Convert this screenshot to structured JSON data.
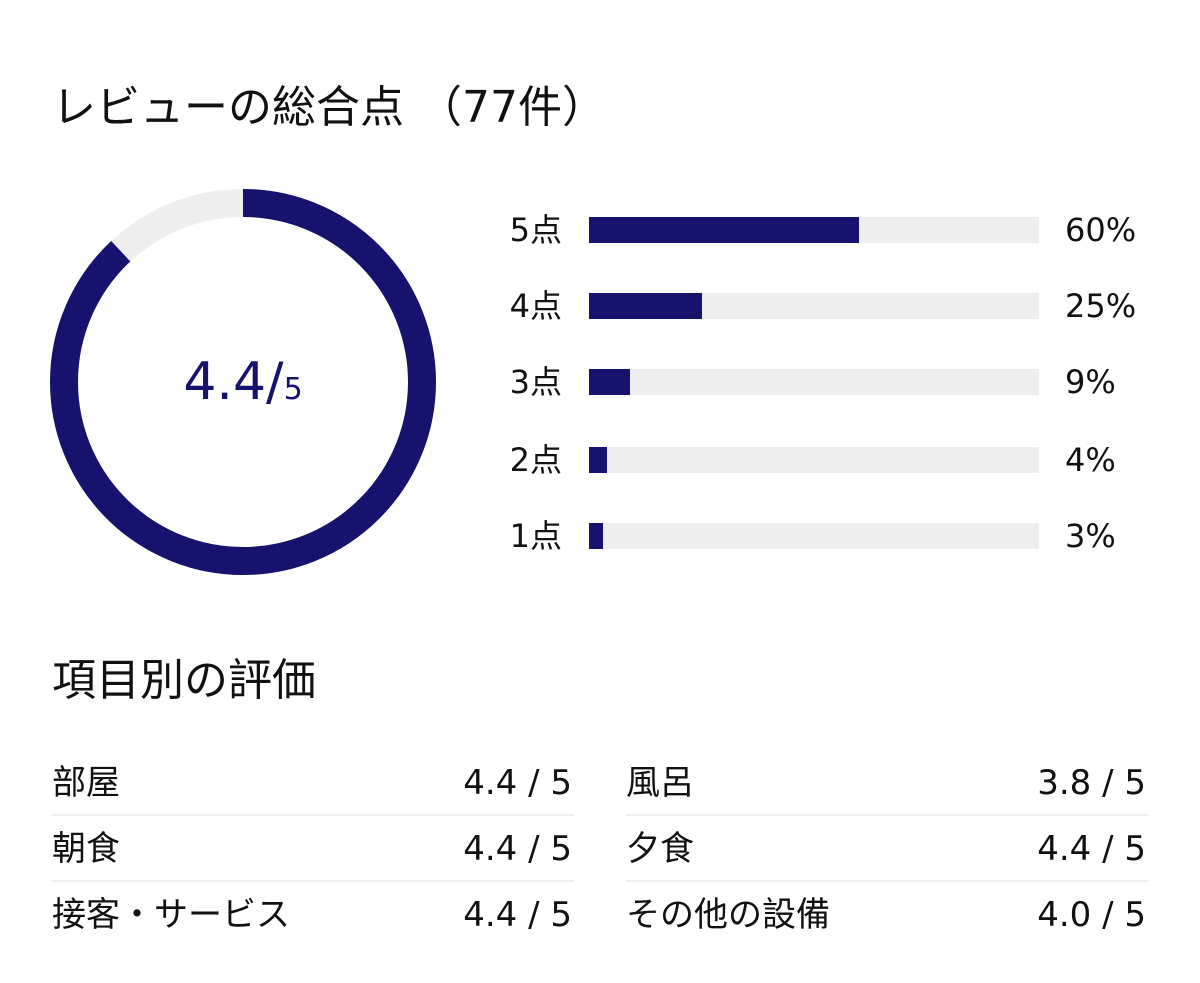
{
  "header": {
    "title": "レビューの総合点",
    "count": "（77件）"
  },
  "summary": {
    "score_main": "4.4/",
    "score_max": "5",
    "ring_value": 4.4,
    "ring_max": 5,
    "ring_color": "#16126e",
    "ring_track_color": "#eeeeee"
  },
  "distribution": [
    {
      "label": "5点",
      "percent_text": "60%",
      "fill": 0.6
    },
    {
      "label": "4点",
      "percent_text": "25%",
      "fill": 0.25
    },
    {
      "label": "3点",
      "percent_text": "9%",
      "fill": 0.09
    },
    {
      "label": "2点",
      "percent_text": "4%",
      "fill": 0.04
    },
    {
      "label": "1点",
      "percent_text": "3%",
      "fill": 0.03
    }
  ],
  "categories_title": "項目別の評価",
  "categories": [
    {
      "name": "部屋",
      "score": "4.4 / 5"
    },
    {
      "name": "風呂",
      "score": "3.8 / 5"
    },
    {
      "name": "朝食",
      "score": "4.4 / 5"
    },
    {
      "name": "夕食",
      "score": "4.4 / 5"
    },
    {
      "name": "接客・サービス",
      "score": "4.4 / 5"
    },
    {
      "name": "その他の設備",
      "score": "4.0 / 5"
    }
  ]
}
